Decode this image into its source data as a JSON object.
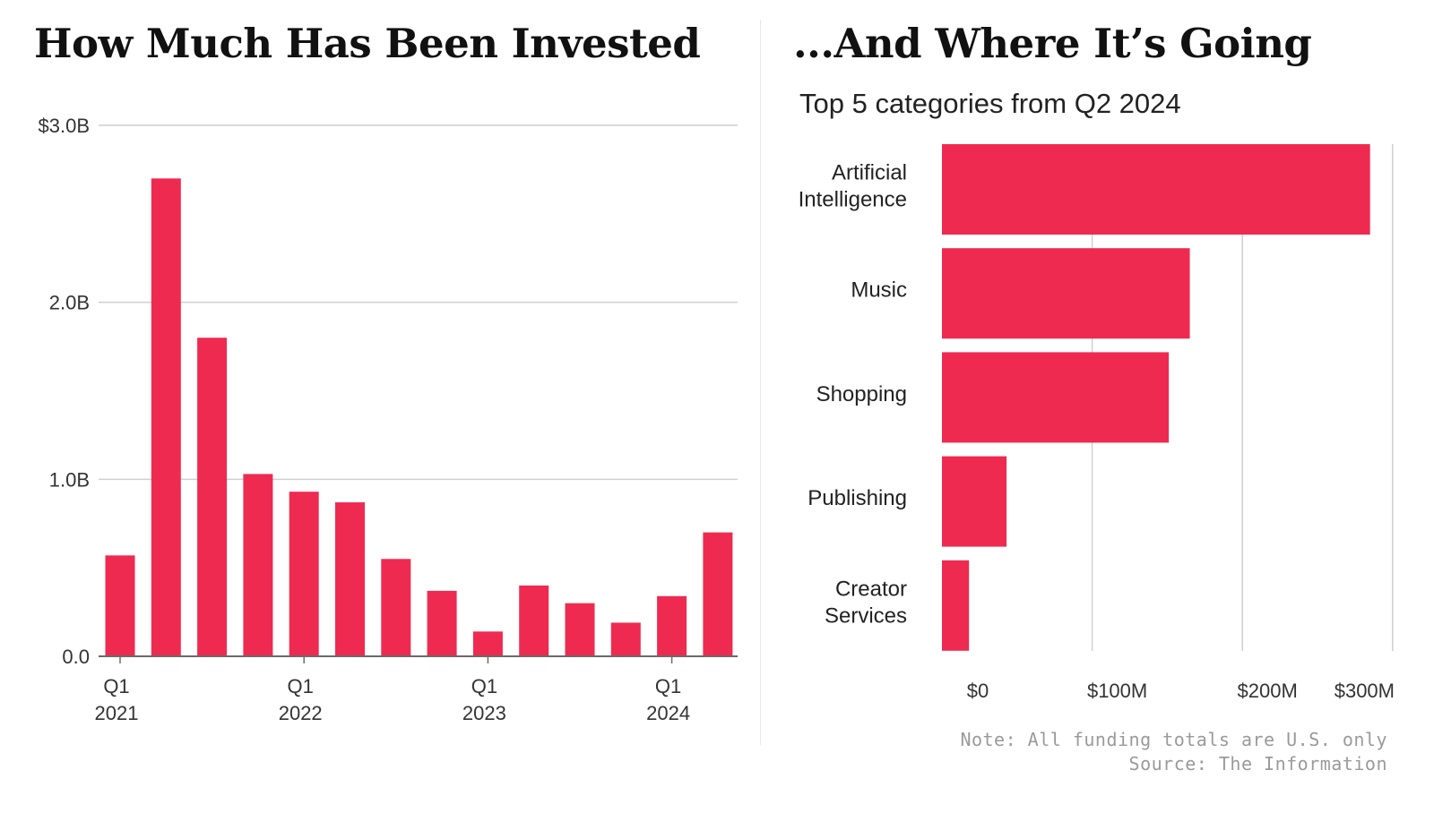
{
  "chart_data": [
    {
      "type": "bar",
      "title": "How Much Has Been Invested",
      "categories": [
        "Q1 2021",
        "Q2 2021",
        "Q3 2021",
        "Q4 2021",
        "Q1 2022",
        "Q2 2022",
        "Q3 2022",
        "Q4 2022",
        "Q1 2023",
        "Q2 2023",
        "Q3 2023",
        "Q4 2023",
        "Q1 2024",
        "Q2 2024"
      ],
      "values": [
        0.57,
        2.7,
        1.8,
        1.03,
        0.93,
        0.87,
        0.55,
        0.37,
        0.14,
        0.4,
        0.3,
        0.19,
        0.34,
        0.7
      ],
      "unit": "B USD",
      "ylim": [
        0,
        3.0
      ],
      "yticks": [
        {
          "value": 3.0,
          "label": "$3.0B"
        },
        {
          "value": 2.0,
          "label": "2.0B"
        },
        {
          "value": 1.0,
          "label": "1.0B"
        },
        {
          "value": 0.0,
          "label": "0.0"
        }
      ],
      "xtick_labels": [
        {
          "index": 0,
          "line1": "Q1",
          "line2": "2021"
        },
        {
          "index": 4,
          "line1": "Q1",
          "line2": "2022"
        },
        {
          "index": 8,
          "line1": "Q1",
          "line2": "2023"
        },
        {
          "index": 12,
          "line1": "Q1",
          "line2": "2024"
        }
      ],
      "grid": true,
      "xlabel": "",
      "ylabel": ""
    },
    {
      "type": "bar",
      "orientation": "horizontal",
      "title": "...And Where It’s Going",
      "subtitle": "Top 5 categories from Q2 2024",
      "categories": [
        {
          "name": "Artificial Intelligence",
          "lines": [
            "Artificial",
            "Intelligence"
          ]
        },
        {
          "name": "Music",
          "lines": [
            "Music"
          ]
        },
        {
          "name": "Shopping",
          "lines": [
            "Shopping"
          ]
        },
        {
          "name": "Publishing",
          "lines": [
            "Publishing"
          ]
        },
        {
          "name": "Creator Services",
          "lines": [
            "Creator",
            "Services"
          ]
        }
      ],
      "values": [
        285,
        165,
        151,
        43,
        18
      ],
      "unit": "M USD",
      "xlim": [
        0,
        300
      ],
      "xticks": [
        {
          "value": 0,
          "label": "$0"
        },
        {
          "value": 100,
          "label": "$100M"
        },
        {
          "value": 200,
          "label": "$200M"
        },
        {
          "value": 300,
          "label": "$300M"
        }
      ],
      "grid": true
    }
  ],
  "footer": {
    "note": "Note: All funding totals are U.S. only",
    "source": "Source: The Information"
  },
  "colors": {
    "bar": "#ef2a50",
    "grid": "#cfcfcf",
    "axis": "#6a6a6a"
  }
}
